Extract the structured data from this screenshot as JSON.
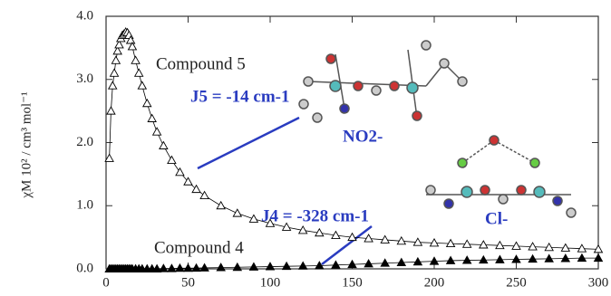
{
  "chart_data": {
    "type": "scatter",
    "y_label": "χM 10² / cm³ mol⁻¹",
    "x": [
      2,
      3,
      4,
      5,
      6,
      7,
      8,
      9,
      10,
      11,
      12,
      13,
      14,
      15,
      16,
      18,
      20,
      22,
      25,
      28,
      31,
      35,
      40,
      45,
      50,
      55,
      60,
      70,
      80,
      90,
      100,
      110,
      120,
      130,
      140,
      150,
      160,
      170,
      180,
      190,
      200,
      210,
      220,
      230,
      240,
      250,
      260,
      270,
      280,
      290,
      300
    ],
    "series": [
      {
        "name": "Compound 5",
        "color": "#000000",
        "filled": false,
        "values": [
          1.75,
          2.5,
          2.9,
          3.1,
          3.3,
          3.45,
          3.55,
          3.65,
          3.7,
          3.72,
          3.75,
          3.74,
          3.7,
          3.62,
          3.52,
          3.3,
          3.1,
          2.9,
          2.62,
          2.38,
          2.17,
          1.95,
          1.72,
          1.53,
          1.38,
          1.26,
          1.16,
          1.0,
          0.88,
          0.79,
          0.72,
          0.66,
          0.61,
          0.57,
          0.53,
          0.5,
          0.48,
          0.46,
          0.44,
          0.42,
          0.41,
          0.4,
          0.39,
          0.38,
          0.37,
          0.36,
          0.35,
          0.34,
          0.33,
          0.32,
          0.31
        ]
      },
      {
        "name": "Compound 4",
        "color": "#000000",
        "filled": true,
        "values": [
          0,
          0,
          0,
          0,
          0,
          0,
          0,
          0,
          0,
          0,
          0,
          0,
          0,
          0,
          0,
          0,
          0,
          0,
          0,
          0,
          0,
          0.005,
          0.005,
          0.01,
          0.01,
          0.012,
          0.015,
          0.02,
          0.025,
          0.03,
          0.035,
          0.04,
          0.045,
          0.05,
          0.06,
          0.07,
          0.08,
          0.09,
          0.1,
          0.11,
          0.12,
          0.13,
          0.135,
          0.14,
          0.145,
          0.15,
          0.155,
          0.16,
          0.165,
          0.17,
          0.17
        ]
      }
    ],
    "annotations": [
      "Compound 5",
      "J5 = -14 cm-1",
      "NO2-",
      "J4 = -328 cm-1",
      "Cl-",
      "Compound 4"
    ],
    "xlim": [
      0,
      300
    ],
    "xticks": [
      0,
      50,
      100,
      150,
      200,
      250,
      300
    ],
    "ylim": [
      0,
      4
    ],
    "yticks": [
      {
        "value": 0,
        "label": "0.0"
      },
      {
        "value": 1,
        "label": "1.0"
      },
      {
        "value": 2,
        "label": "2.0"
      },
      {
        "value": 3,
        "label": "3.0"
      },
      {
        "value": 4,
        "label": "4.0"
      }
    ]
  }
}
